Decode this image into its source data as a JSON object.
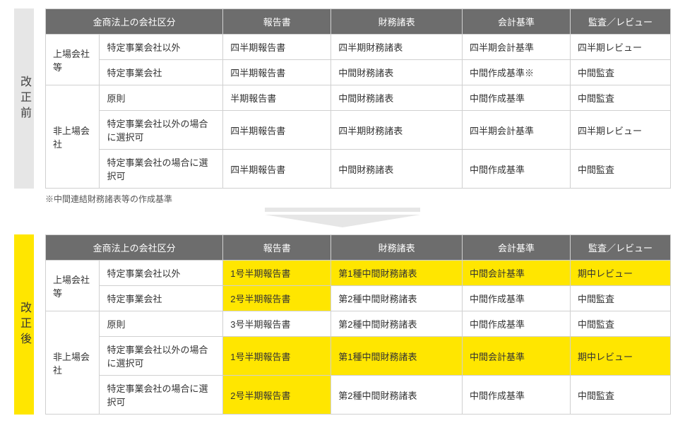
{
  "before": {
    "label": "改正前",
    "headers": [
      "金商法上の会社区分",
      "報告書",
      "財務諸表",
      "会計基準",
      "監査／レビュー"
    ],
    "group1": {
      "label": "上場会社等",
      "rows": [
        {
          "cat": "特定事業会社以外",
          "report": "四半期報告書",
          "fs": "四半期財務諸表",
          "std": "四半期会計基準",
          "audit": "四半期レビュー"
        },
        {
          "cat": "特定事業会社",
          "report": "四半期報告書",
          "fs": "中間財務諸表",
          "std": "中間作成基準※",
          "audit": "中間監査"
        }
      ]
    },
    "group2": {
      "label": "非上場会社",
      "rows": [
        {
          "cat": "原則",
          "report": "半期報告書",
          "fs": "中間財務諸表",
          "std": "中間作成基準",
          "audit": "中間監査"
        },
        {
          "cat": "特定事業会社以外の場合に選択可",
          "report": "四半期報告書",
          "fs": "四半期財務諸表",
          "std": "四半期会計基準",
          "audit": "四半期レビュー"
        },
        {
          "cat": "特定事業会社の場合に選択可",
          "report": "四半期報告書",
          "fs": "中間財務諸表",
          "std": "中間作成基準",
          "audit": "中間監査"
        }
      ]
    },
    "footnote": "※中間連結財務諸表等の作成基準"
  },
  "after": {
    "label": "改正後",
    "headers": [
      "金商法上の会社区分",
      "報告書",
      "財務諸表",
      "会計基準",
      "監査／レビュー"
    ],
    "group1": {
      "label": "上場会社等",
      "rows": [
        {
          "cat": "特定事業会社以外",
          "report": "1号半期報告書",
          "fs": "第1種中間財務諸表",
          "std": "中間会計基準",
          "audit": "期中レビュー",
          "hl": [
            "report",
            "fs",
            "std",
            "audit"
          ]
        },
        {
          "cat": "特定事業会社",
          "report": "2号半期報告書",
          "fs": "第2種中間財務諸表",
          "std": "中間作成基準",
          "audit": "中間監査",
          "hl": [
            "report"
          ]
        }
      ]
    },
    "group2": {
      "label": "非上場会社",
      "rows": [
        {
          "cat": "原則",
          "report": "3号半期報告書",
          "fs": "第2種中間財務諸表",
          "std": "中間作成基準",
          "audit": "中間監査",
          "hl": []
        },
        {
          "cat": "特定事業会社以外の場合に選択可",
          "report": "1号半期報告書",
          "fs": "第1種中間財務諸表",
          "std": "中間会計基準",
          "audit": "期中レビュー",
          "hl": [
            "report",
            "fs",
            "std",
            "audit"
          ]
        },
        {
          "cat": "特定事業会社の場合に選択可",
          "report": "2号半期報告書",
          "fs": "第2種中間財務諸表",
          "std": "中間作成基準",
          "audit": "中間監査",
          "hl": [
            "report"
          ]
        }
      ]
    }
  },
  "colors": {
    "header_bg": "#6d6d6d",
    "highlight": "#ffe600",
    "vlabel_before": "#e6e6e6",
    "border": "#d0d0d0"
  }
}
